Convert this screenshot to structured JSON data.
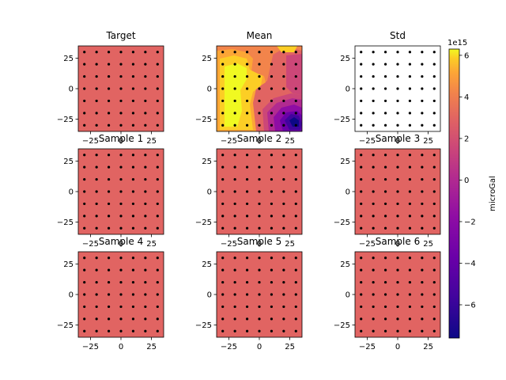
{
  "chart_data": [
    {
      "type": "heatmap",
      "title": "Target",
      "fill": "uniform-zero",
      "xlim": [
        -35,
        35
      ],
      "ylim": [
        -35,
        35
      ],
      "xticks": [
        -25,
        0,
        25
      ],
      "yticks": [
        -25,
        0,
        25
      ],
      "tick_labels": [
        "−25",
        "0",
        "25"
      ],
      "stations_grid": 7
    },
    {
      "type": "heatmap",
      "title": "Mean",
      "fill": "contour",
      "xlim": [
        -35,
        35
      ],
      "ylim": [
        -35,
        35
      ],
      "xticks": [
        -25,
        0,
        25
      ],
      "yticks": [
        -25,
        0,
        25
      ],
      "tick_labels": [
        "−25",
        "0",
        "25"
      ],
      "stations_grid": 7
    },
    {
      "type": "heatmap",
      "title": "Std",
      "fill": "white",
      "xlim": [
        -35,
        35
      ],
      "ylim": [
        -35,
        35
      ],
      "xticks": [
        -25,
        0,
        25
      ],
      "yticks": [
        -25,
        0,
        25
      ],
      "tick_labels": [
        "−25",
        "0",
        "25"
      ],
      "stations_grid": 7
    },
    {
      "type": "heatmap",
      "title": "Sample 1",
      "fill": "uniform-zero",
      "xlim": [
        -35,
        35
      ],
      "ylim": [
        -35,
        35
      ],
      "xticks": [
        -25,
        0,
        25
      ],
      "yticks": [
        -25,
        0,
        25
      ],
      "tick_labels": [
        "−25",
        "0",
        "25"
      ],
      "stations_grid": 7
    },
    {
      "type": "heatmap",
      "title": "Sample 2",
      "fill": "uniform-zero",
      "xlim": [
        -35,
        35
      ],
      "ylim": [
        -35,
        35
      ],
      "xticks": [
        -25,
        0,
        25
      ],
      "yticks": [
        -25,
        0,
        25
      ],
      "tick_labels": [
        "−25",
        "0",
        "25"
      ],
      "stations_grid": 7
    },
    {
      "type": "heatmap",
      "title": "Sample 3",
      "fill": "uniform-zero",
      "xlim": [
        -35,
        35
      ],
      "ylim": [
        -35,
        35
      ],
      "xticks": [
        -25,
        0,
        25
      ],
      "yticks": [
        -25,
        0,
        25
      ],
      "tick_labels": [
        "−25",
        "0",
        "25"
      ],
      "stations_grid": 7
    },
    {
      "type": "heatmap",
      "title": "Sample 4",
      "fill": "uniform-zero",
      "xlim": [
        -35,
        35
      ],
      "ylim": [
        -35,
        35
      ],
      "xticks": [
        -25,
        0,
        25
      ],
      "yticks": [
        -25,
        0,
        25
      ],
      "tick_labels": [
        "−25",
        "0",
        "25"
      ],
      "stations_grid": 7
    },
    {
      "type": "heatmap",
      "title": "Sample 5",
      "fill": "uniform-zero",
      "xlim": [
        -35,
        35
      ],
      "ylim": [
        -35,
        35
      ],
      "xticks": [
        -25,
        0,
        25
      ],
      "yticks": [
        -25,
        0,
        25
      ],
      "tick_labels": [
        "−25",
        "0",
        "25"
      ],
      "stations_grid": 7
    },
    {
      "type": "heatmap",
      "title": "Sample 6",
      "fill": "uniform-zero",
      "xlim": [
        -35,
        35
      ],
      "ylim": [
        -35,
        35
      ],
      "xticks": [
        -25,
        0,
        25
      ],
      "yticks": [
        -25,
        0,
        25
      ],
      "tick_labels": [
        "−25",
        "0",
        "25"
      ],
      "stations_grid": 7
    }
  ],
  "colorbar": {
    "label": "microGal",
    "multiplier": "1e15",
    "range": [
      -7.6,
      6.3
    ],
    "ticks": [
      -6,
      -4,
      -2,
      0,
      2,
      4,
      6
    ],
    "tick_labels": [
      "−6",
      "−4",
      "−2",
      "0",
      "2",
      "4",
      "6"
    ],
    "colormap": "plasma"
  },
  "colors": {
    "zero_fill": "#e16462",
    "station_marker": "#000000"
  }
}
